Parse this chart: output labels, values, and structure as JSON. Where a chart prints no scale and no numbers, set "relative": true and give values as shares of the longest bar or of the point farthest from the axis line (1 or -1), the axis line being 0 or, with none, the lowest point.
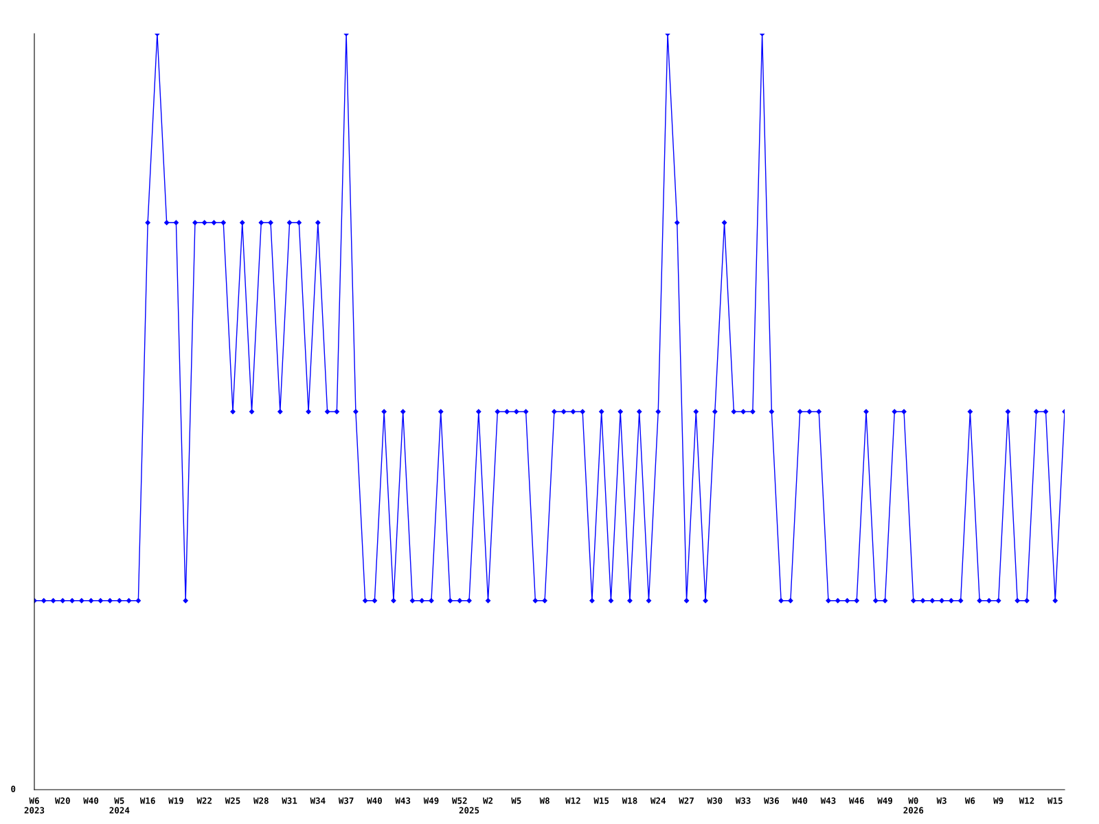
{
  "chart_data": {
    "type": "line",
    "relative": true,
    "color": "#0000ff",
    "marker": "diamond",
    "line_style": "solid",
    "grid": false,
    "annotations": [
      "0"
    ],
    "categories": [
      "W6\n2023",
      null,
      null,
      "W20",
      null,
      null,
      "W40",
      null,
      null,
      "W5\n2024",
      null,
      null,
      "W16",
      null,
      null,
      "W19",
      null,
      null,
      "W22",
      null,
      null,
      "W25",
      null,
      null,
      "W28",
      null,
      null,
      "W31",
      null,
      null,
      "W34",
      null,
      null,
      "W37",
      null,
      null,
      "W40",
      null,
      null,
      "W43",
      null,
      null,
      "W49",
      null,
      null,
      "W52",
      "\n2025",
      null,
      "W2",
      null,
      null,
      "W5",
      null,
      null,
      "W8",
      null,
      null,
      "W12",
      null,
      null,
      "W15",
      null,
      null,
      "W18",
      null,
      null,
      "W24",
      null,
      null,
      "W27",
      null,
      null,
      "W30",
      null,
      null,
      "W33",
      null,
      null,
      "W36",
      null,
      null,
      "W40",
      null,
      null,
      "W43",
      null,
      null,
      "W46",
      null,
      null,
      "W49",
      null,
      null,
      "W0\n2026",
      null,
      null,
      "W3",
      null,
      null,
      "W6",
      null,
      null,
      "W9",
      null,
      null,
      "W12",
      null,
      null,
      "W15",
      null
    ],
    "values": [
      0.25,
      0.25,
      0.25,
      0.25,
      0.25,
      0.25,
      0.25,
      0.25,
      0.25,
      0.25,
      0.25,
      0.25,
      0.75,
      1,
      0.75,
      0.75,
      0.25,
      0.75,
      0.75,
      0.75,
      0.75,
      0.5,
      0.75,
      0.5,
      0.75,
      0.75,
      0.5,
      0.75,
      0.75,
      0.5,
      0.75,
      0.5,
      0.5,
      1,
      0.5,
      0.25,
      0.25,
      0.5,
      0.25,
      0.5,
      0.25,
      0.25,
      0.25,
      0.5,
      0.25,
      0.25,
      0.25,
      0.5,
      0.25,
      0.5,
      0.5,
      0.5,
      0.5,
      0.25,
      0.25,
      0.5,
      0.5,
      0.5,
      0.5,
      0.25,
      0.5,
      0.25,
      0.5,
      0.25,
      0.5,
      0.25,
      0.5,
      1,
      0.75,
      0.25,
      0.5,
      0.25,
      0.5,
      0.75,
      0.5,
      0.5,
      0.5,
      1,
      0.5,
      0.25,
      0.25,
      0.5,
      0.5,
      0.5,
      0.25,
      0.25,
      0.25,
      0.25,
      0.5,
      0.25,
      0.25,
      0.5,
      0.5,
      0.25,
      0.25,
      0.25,
      0.25,
      0.25,
      0.25,
      0.5,
      0.25,
      0.25,
      0.25,
      0.5,
      0.25,
      0.25,
      0.5,
      0.5,
      0.25,
      0.5
    ]
  }
}
